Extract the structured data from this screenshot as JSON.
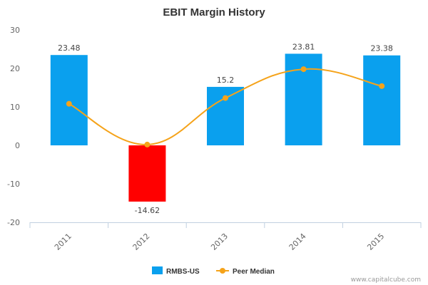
{
  "chart_data": {
    "type": "bar",
    "title": "EBIT Margin History",
    "categories": [
      "2011",
      "2012",
      "2013",
      "2014",
      "2015"
    ],
    "ylim": [
      -20,
      30
    ],
    "yticks": [
      -20,
      -10,
      0,
      10,
      20,
      30
    ],
    "grid": false,
    "legend_position": "bottom",
    "series": [
      {
        "name": "RMBS-US",
        "type": "bar",
        "values": [
          23.48,
          -14.62,
          15.2,
          23.81,
          23.38
        ],
        "labels": [
          "23.48",
          "-14.62",
          "15.2",
          "23.81",
          "23.38"
        ],
        "color": "#0aa0ee",
        "negative_color": "#ff0000"
      },
      {
        "name": "Peer Median",
        "type": "line",
        "values": [
          10.8,
          0.2,
          12.3,
          19.8,
          15.4
        ],
        "color": "#f5a31a"
      }
    ]
  },
  "footer": {
    "credit": "www.capitalcube.com"
  }
}
